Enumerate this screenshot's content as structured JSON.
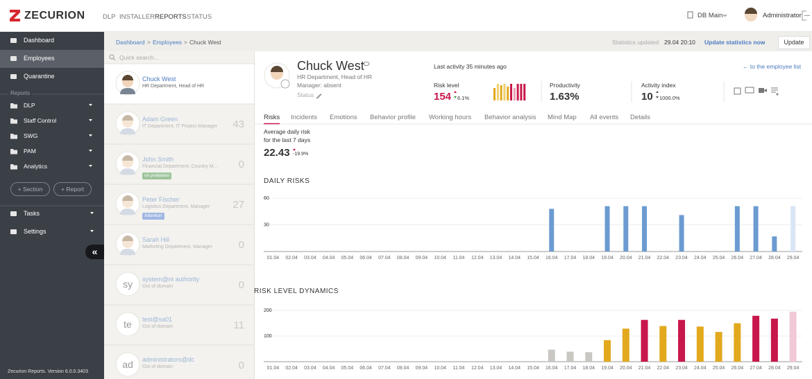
{
  "header": {
    "logo": "ZECURION",
    "nav": [
      "DLP",
      "INSTALLER",
      "REPORTS",
      "STATUS"
    ],
    "db": "DB Main",
    "user": "Administrator"
  },
  "sidebar": {
    "items": [
      "Dashboard",
      "Employees",
      "Quarantine"
    ],
    "section_label": "Reports",
    "reports": [
      "DLP",
      "Staff Control",
      "SWG",
      "PAM",
      "Analytics"
    ],
    "add_section": "+ Section",
    "add_report": "+ Report",
    "bottom": [
      "Tasks",
      "Settings"
    ],
    "collapse": "«",
    "footer": "Zecurion Reports. Version 6.0.0.3403"
  },
  "breadcrumb": {
    "items": [
      "Dashboard",
      "Employees",
      "Chuck West"
    ],
    "separator": ">"
  },
  "stats": {
    "label": "Statistics updated",
    "time": "29.04 20:10",
    "link": "Update statistics now",
    "button": "Update"
  },
  "search": {
    "placeholder": "Quick search..."
  },
  "employees": [
    {
      "name": "Chuck West",
      "dept": "HR Department, Head of HR"
    },
    {
      "name": "Adam Green",
      "dept": "IT Department, IT Project Manager",
      "score": 43
    },
    {
      "name": "John Smith",
      "dept": "Financial Department, Country M...",
      "badge": "on probation",
      "score": 0
    },
    {
      "name": "Peter Fischer",
      "dept": "Logistics Department, Manager",
      "badge": "Attention",
      "score": 27
    },
    {
      "name": "Sarah Hill",
      "dept": "Marketing Department, Manager",
      "score": 0
    },
    {
      "initials": "sy",
      "name": "system@nt authority",
      "dept": "Out of domain",
      "score": 0
    },
    {
      "initials": "te",
      "name": "test@sa01",
      "dept": "Out of domain",
      "score": 11
    },
    {
      "initials": "ad",
      "name": "administrators@dc",
      "dept": "Out of domain",
      "score": 0
    }
  ],
  "profile": {
    "name": "Chuck West",
    "dept": "HR Department, Head of HR",
    "manager": "Manager: absent",
    "status": "Status",
    "last_activity": "Last activity 35 minutes ago",
    "back_link": "← to the employee list"
  },
  "metrics": [
    {
      "label": "Risk level",
      "value": 154,
      "change": "6.1%"
    },
    {
      "label": "Productivity",
      "value": "1.63%"
    },
    {
      "label": "Activity index",
      "value": 10,
      "change": "1000.0%"
    }
  ],
  "tabs": [
    "Risks",
    "Incidents",
    "Emotions",
    "Behavior profile",
    "Working hours",
    "Behavior analysis",
    "Mind Map",
    "All events",
    "Details"
  ],
  "summary": {
    "label": [
      "Average daily risk",
      "for the last 7 days"
    ],
    "value": 22.43,
    "change": "-19.9%"
  },
  "chart_data": [
    {
      "type": "bar",
      "title": "DAILY RISKS",
      "categories": [
        "01.04",
        "02.04",
        "03.04",
        "04.04",
        "05.04",
        "06.04",
        "07.04",
        "08.04",
        "09.04",
        "10.04",
        "11.04",
        "12.04",
        "13.04",
        "14.04",
        "15.04",
        "16.04",
        "17.04",
        "18.04",
        "19.04",
        "20.04",
        "21.04",
        "22.04",
        "23.04",
        "24.04",
        "25.04",
        "26.04",
        "27.04",
        "28.04",
        "29.04"
      ],
      "values": [
        0,
        0,
        0,
        0,
        0,
        0,
        0,
        0,
        0,
        0,
        0,
        0,
        0,
        0,
        0,
        48,
        0,
        0,
        51,
        51,
        51,
        0,
        41,
        0,
        0,
        51,
        51,
        17,
        51
      ],
      "colors": [
        "#6b9bd1",
        "#6b9bd1",
        "#6b9bd1",
        "#6b9bd1",
        "#6b9bd1",
        "#6b9bd1",
        "#6b9bd1",
        "#6b9bd1",
        "#6b9bd1",
        "#6b9bd1",
        "#6b9bd1",
        "#6b9bd1",
        "#6b9bd1",
        "#6b9bd1",
        "#6b9bd1",
        "#6b9bd1",
        "#6b9bd1",
        "#6b9bd1",
        "#6b9bd1",
        "#6b9bd1",
        "#6b9bd1",
        "#6b9bd1",
        "#6b9bd1",
        "#6b9bd1",
        "#6b9bd1",
        "#6b9bd1",
        "#6b9bd1",
        "#6b9bd1",
        "#d9e6f5"
      ],
      "ylim": [
        0,
        60
      ],
      "yticks": [
        30,
        60
      ],
      "grid": true
    },
    {
      "type": "bar",
      "title": "RISK LEVEL DYNAMICS",
      "categories": [
        "01.04",
        "02.04",
        "03.04",
        "04.04",
        "05.04",
        "06.04",
        "07.04",
        "08.04",
        "09.04",
        "10.04",
        "11.04",
        "12.04",
        "13.04",
        "14.04",
        "15.04",
        "16.04",
        "17.04",
        "18.04",
        "19.04",
        "20.04",
        "21.04",
        "22.04",
        "23.04",
        "24.04",
        "25.04",
        "26.04",
        "27.04",
        "28.04",
        "29.04"
      ],
      "values": [
        0,
        0,
        0,
        0,
        0,
        0,
        0,
        0,
        0,
        0,
        0,
        0,
        0,
        0,
        0,
        47,
        39,
        37,
        84,
        129,
        163,
        139,
        163,
        137,
        116,
        150,
        179,
        168,
        195
      ],
      "colors": [
        "#c9c7c1",
        "#c9c7c1",
        "#c9c7c1",
        "#c9c7c1",
        "#c9c7c1",
        "#c9c7c1",
        "#c9c7c1",
        "#c9c7c1",
        "#c9c7c1",
        "#c9c7c1",
        "#c9c7c1",
        "#c9c7c1",
        "#c9c7c1",
        "#c9c7c1",
        "#c9c7c1",
        "#c9c7c1",
        "#c9c7c1",
        "#c9c7c1",
        "#e2a91e",
        "#e2a91e",
        "#c8174a",
        "#e2a91e",
        "#c8174a",
        "#e2a91e",
        "#e2a91e",
        "#e2a91e",
        "#c8174a",
        "#c8174a",
        "#f1c9d5"
      ],
      "ylim": [
        0,
        200
      ],
      "yticks": [
        100,
        200
      ],
      "grid": true
    }
  ]
}
